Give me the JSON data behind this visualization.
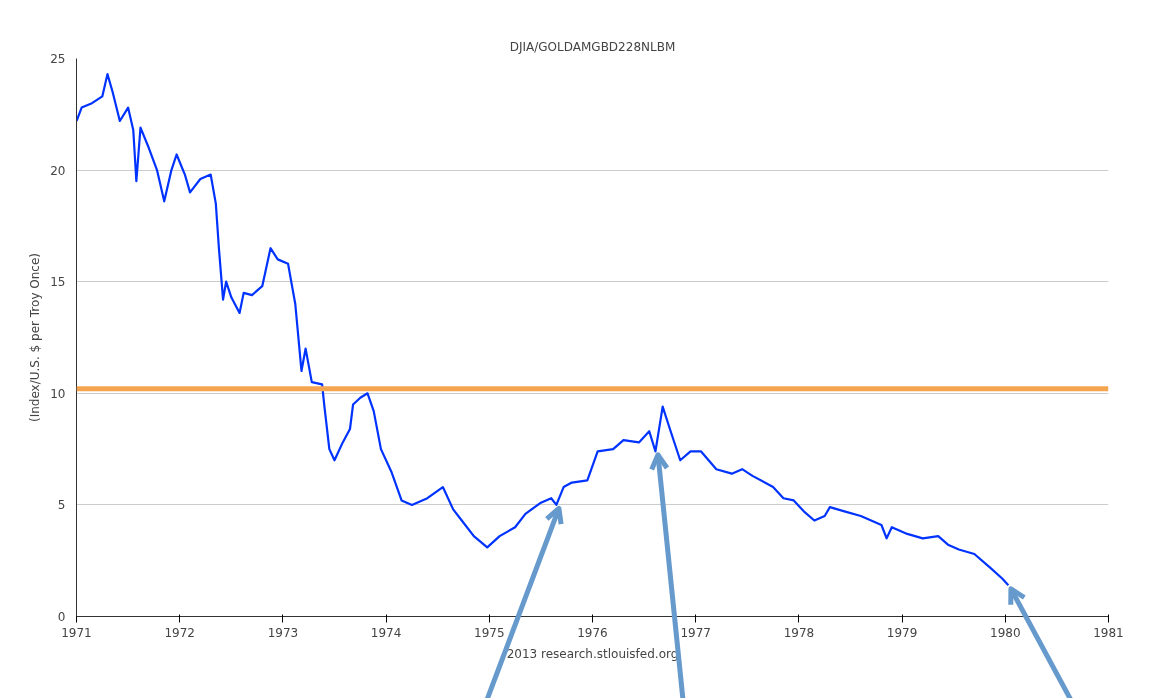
{
  "chart_data": {
    "type": "line",
    "title": "DJIA/GOLDAMGBD228NLBM",
    "ylabel": "(Index/U.S. $ per Troy Once)",
    "annotations": [
      "2013 research.stlouisfed.org"
    ],
    "x": [
      1971.0,
      1971.05,
      1971.15,
      1971.25,
      1971.3,
      1971.35,
      1971.42,
      1971.5,
      1971.55,
      1971.58,
      1971.62,
      1971.7,
      1971.78,
      1971.85,
      1971.92,
      1971.97,
      1972.05,
      1972.1,
      1972.2,
      1972.3,
      1972.35,
      1972.38,
      1972.42,
      1972.45,
      1972.5,
      1972.58,
      1972.62,
      1972.7,
      1972.8,
      1972.88,
      1972.95,
      1973.05,
      1973.12,
      1973.18,
      1973.22,
      1973.28,
      1973.38,
      1973.4,
      1973.45,
      1973.5,
      1973.58,
      1973.65,
      1973.68,
      1973.75,
      1973.82,
      1973.88,
      1973.95,
      1974.05,
      1974.15,
      1974.25,
      1974.4,
      1974.55,
      1974.65,
      1974.75,
      1974.85,
      1974.98,
      1975.1,
      1975.25,
      1975.35,
      1975.5,
      1975.6,
      1975.65,
      1975.72,
      1975.8,
      1975.95,
      1976.05,
      1976.2,
      1976.3,
      1976.45,
      1976.55,
      1976.61,
      1976.68,
      1976.75,
      1976.85,
      1976.95,
      1977.05,
      1977.2,
      1977.35,
      1977.45,
      1977.55,
      1977.75,
      1977.85,
      1977.95,
      1978.05,
      1978.15,
      1978.25,
      1978.3,
      1978.45,
      1978.6,
      1978.8,
      1978.85,
      1978.9,
      1979.05,
      1979.2,
      1979.35,
      1979.45,
      1979.55,
      1979.7,
      1979.85,
      1979.97,
      1980.03
    ],
    "series": [
      {
        "color": "#0033ff",
        "values": [
          22.2,
          22.8,
          23.0,
          23.3,
          24.3,
          23.5,
          22.2,
          22.8,
          21.8,
          19.5,
          21.9,
          21.0,
          20.0,
          18.6,
          20.0,
          20.7,
          19.8,
          19.0,
          19.6,
          19.8,
          18.5,
          16.5,
          14.2,
          15.0,
          14.3,
          13.6,
          14.5,
          14.4,
          14.8,
          16.5,
          16.0,
          15.8,
          14.0,
          11.0,
          12.0,
          10.5,
          10.4,
          9.5,
          7.5,
          7.0,
          7.8,
          8.4,
          9.5,
          9.8,
          10.0,
          9.2,
          7.5,
          6.5,
          5.2,
          5.0,
          5.3,
          5.8,
          4.8,
          4.2,
          3.6,
          3.1,
          3.6,
          4.0,
          4.6,
          5.1,
          5.3,
          5.0,
          5.8,
          6.0,
          6.1,
          7.4,
          7.5,
          7.9,
          7.8,
          8.3,
          7.4,
          9.4,
          8.4,
          7.0,
          7.4,
          7.4,
          6.6,
          6.4,
          6.6,
          6.3,
          5.8,
          5.3,
          5.2,
          4.7,
          4.3,
          4.5,
          4.9,
          4.7,
          4.5,
          4.1,
          3.5,
          4.0,
          3.7,
          3.5,
          3.6,
          3.2,
          3.0,
          2.8,
          2.2,
          1.7,
          1.4
        ]
      }
    ],
    "xlim": [
      1971,
      1981
    ],
    "xticks": [
      1971,
      1972,
      1973,
      1974,
      1975,
      1976,
      1977,
      1978,
      1979,
      1980,
      1981
    ],
    "ylim": [
      0,
      25
    ],
    "yticks": [
      0,
      5,
      10,
      15,
      20,
      25
    ],
    "grid": "y",
    "marker": "none",
    "line_style": "solid",
    "ref_lines": [
      {
        "axis": "y",
        "value": 10.2,
        "label": null,
        "color": "#f5a550"
      }
    ]
  }
}
